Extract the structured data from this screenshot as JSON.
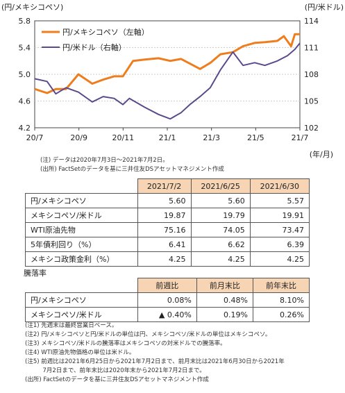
{
  "chart_data": {
    "type": "line",
    "left_axis_unit": "(円/メキシコペソ)",
    "right_axis_unit": "(円/米ドル)",
    "x_unit": "(年/月)",
    "left_ticks": [
      "5.8",
      "5.4",
      "5.0",
      "4.6",
      "4.2"
    ],
    "right_ticks": [
      "114",
      "111",
      "108",
      "105",
      "102"
    ],
    "x_ticks": [
      "20/7",
      "20/9",
      "20/11",
      "21/1",
      "21/3",
      "21/5",
      "21/7"
    ],
    "ylim_left": [
      4.2,
      5.8
    ],
    "ylim_right": [
      102,
      114
    ],
    "xlim": [
      "2020-07-03",
      "2021-07-02"
    ],
    "series": [
      {
        "name": "円/メキシコペソ（左軸）",
        "color": "#ee7d1e",
        "axis": "left",
        "points": [
          [
            "2020-07-03",
            4.78
          ],
          [
            "2020-07-20",
            4.72
          ],
          [
            "2020-08-01",
            4.78
          ],
          [
            "2020-08-15",
            4.78
          ],
          [
            "2020-09-01",
            5.0
          ],
          [
            "2020-09-20",
            4.86
          ],
          [
            "2020-10-05",
            4.92
          ],
          [
            "2020-10-20",
            4.97
          ],
          [
            "2020-11-01",
            4.97
          ],
          [
            "2020-11-15",
            5.2
          ],
          [
            "2020-12-01",
            5.22
          ],
          [
            "2020-12-20",
            5.24
          ],
          [
            "2021-01-05",
            5.2
          ],
          [
            "2021-01-20",
            5.23
          ],
          [
            "2021-02-01",
            5.16
          ],
          [
            "2021-02-15",
            5.08
          ],
          [
            "2021-03-01",
            5.17
          ],
          [
            "2021-03-15",
            5.3
          ],
          [
            "2021-04-01",
            5.33
          ],
          [
            "2021-04-15",
            5.42
          ],
          [
            "2021-05-01",
            5.47
          ],
          [
            "2021-05-15",
            5.48
          ],
          [
            "2021-06-01",
            5.5
          ],
          [
            "2021-06-10",
            5.57
          ],
          [
            "2021-06-20",
            5.42
          ],
          [
            "2021-06-25",
            5.6
          ],
          [
            "2021-07-02",
            5.6
          ]
        ]
      },
      {
        "name": "円/米ドル（右軸）",
        "color": "#5b4a8b",
        "axis": "right",
        "points": [
          [
            "2020-07-03",
            107.5
          ],
          [
            "2020-07-20",
            107.2
          ],
          [
            "2020-08-01",
            105.8
          ],
          [
            "2020-08-15",
            106.5
          ],
          [
            "2020-09-01",
            106.0
          ],
          [
            "2020-09-20",
            104.9
          ],
          [
            "2020-10-05",
            105.5
          ],
          [
            "2020-10-20",
            105.3
          ],
          [
            "2020-11-01",
            104.6
          ],
          [
            "2020-11-10",
            105.3
          ],
          [
            "2020-12-01",
            104.3
          ],
          [
            "2020-12-20",
            103.5
          ],
          [
            "2021-01-05",
            103.0
          ],
          [
            "2021-01-20",
            103.7
          ],
          [
            "2021-02-01",
            104.6
          ],
          [
            "2021-02-15",
            105.5
          ],
          [
            "2021-03-01",
            106.5
          ],
          [
            "2021-03-15",
            108.5
          ],
          [
            "2021-04-01",
            110.5
          ],
          [
            "2021-04-15",
            109.0
          ],
          [
            "2021-05-01",
            109.3
          ],
          [
            "2021-05-15",
            109.0
          ],
          [
            "2021-06-01",
            109.5
          ],
          [
            "2021-06-15",
            110.1
          ],
          [
            "2021-06-25",
            110.8
          ],
          [
            "2021-07-02",
            111.5
          ]
        ]
      }
    ]
  },
  "chart_notes": [
    "(注) データは2020年7月3日～2021年7月2日。",
    "(出所) FactSetのデータを基に三井住友DSアセットマネジメント作成"
  ],
  "table1": {
    "headers": [
      "",
      "2021/7/2",
      "2021/6/25",
      "2021/6/30"
    ],
    "rows": [
      [
        "円/メキシコペソ",
        "5.60",
        "5.60",
        "5.57"
      ],
      [
        "メキシコペソ/米ドル",
        "19.87",
        "19.79",
        "19.91"
      ],
      [
        "WTI原油先物",
        "75.16",
        "74.05",
        "73.47"
      ],
      [
        "5年債利回り（%）",
        "6.41",
        "6.62",
        "6.39"
      ],
      [
        "メキシコ政策金利（%）",
        "4.25",
        "4.25",
        "4.25"
      ]
    ]
  },
  "table2_title": "騰落率",
  "table2": {
    "headers": [
      "",
      "前週比",
      "前月末比",
      "前年末比"
    ],
    "rows": [
      [
        "円/メキシコペソ",
        "0.08%",
        "0.48%",
        "8.10%"
      ],
      [
        "メキシコペソ/米ドル",
        "▲ 0.40%",
        "0.19%",
        "0.26%"
      ]
    ]
  },
  "footnotes": [
    "(注1) 先週末は最終営業日ベース。",
    "(注2) 円/メキシコペソと円/米ドルの単位は円、メキシコペソ/米ドルの単位はメキシコペソ。",
    "(注3) メキシコペソ/米ドルの騰落率はメキシコペソの対米ドルでの騰落率。",
    "(注4) WTI原油先物価格の単位は米ドル。",
    "(注5) 前週比は2021年6月25日から2021年7月2日まで、前月末比は2021年6月30日から2021年",
    "　　　7月2日まで、前年末比は2020年末から2021年7月2日まで。",
    "(出所) FactSetのデータを基に三井住友DSアセットマネジメント作成"
  ]
}
